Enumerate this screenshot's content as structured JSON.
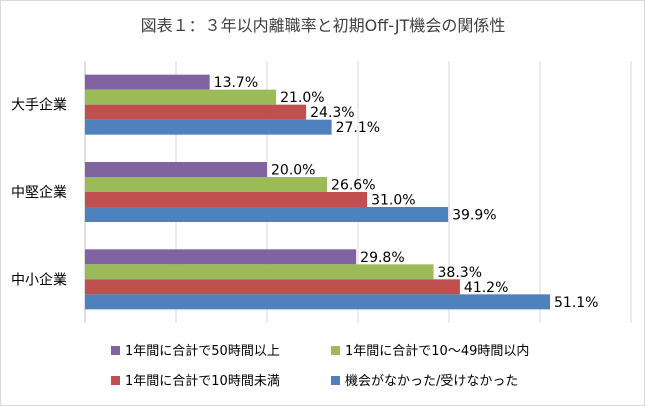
{
  "chart_data": {
    "type": "bar",
    "orientation": "horizontal",
    "title": "図表１：３年以内離職率と初期Off-JT機会の関係性",
    "categories": [
      "大手企業",
      "中堅企業",
      "中小企業"
    ],
    "series": [
      {
        "name": "1年間に合計で50時間以上",
        "color": "#8064a2",
        "values": [
          13.7,
          20.0,
          29.8
        ]
      },
      {
        "name": "1年間に合計で10～49時間以内",
        "color": "#9bbb59",
        "values": [
          21.0,
          26.6,
          38.3
        ]
      },
      {
        "name": "1年間に合計で10時間未満",
        "color": "#c0504d",
        "values": [
          24.3,
          31.0,
          41.2
        ]
      },
      {
        "name": "機会がなかった/受けなかった",
        "color": "#4f81bd",
        "values": [
          27.1,
          39.9,
          51.1
        ]
      }
    ],
    "value_suffix": "%",
    "xlim": [
      0,
      60
    ],
    "grid": true,
    "legend_position": "bottom",
    "tick_labels_shown": false
  }
}
